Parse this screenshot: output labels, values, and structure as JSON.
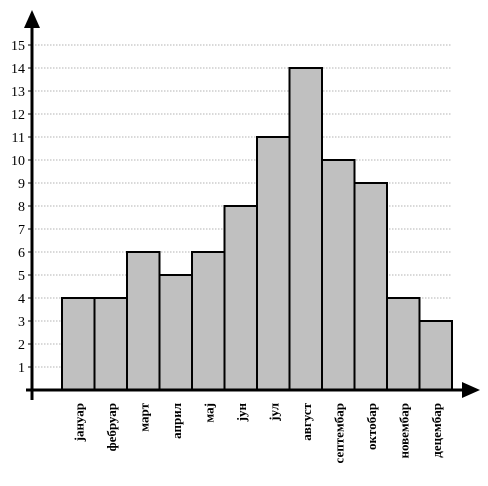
{
  "chart_data": {
    "type": "bar",
    "title": "",
    "xlabel": "",
    "ylabel": "",
    "categories": [
      "јануар",
      "фебруар",
      "март",
      "април",
      "мај",
      "јун",
      "јул",
      "август",
      "септембар",
      "октобар",
      "новембар",
      "децембар"
    ],
    "values": [
      4,
      4,
      6,
      5,
      6,
      8,
      11,
      14,
      10,
      9,
      4,
      3
    ],
    "ylim": [
      0,
      15
    ],
    "yticks": [
      "1",
      "2",
      "3",
      "4",
      "5",
      "6",
      "7",
      "8",
      "9",
      "10",
      "11",
      "12",
      "13",
      "14",
      "15"
    ],
    "grid": true,
    "colors": {
      "bar": "#c0c0c0",
      "edge": "#000000",
      "grid": "#9a9a9a"
    }
  }
}
